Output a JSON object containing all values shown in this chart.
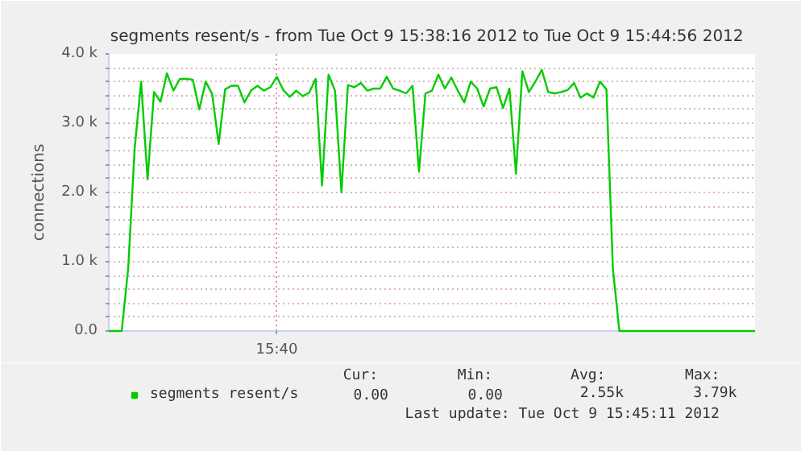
{
  "chart_data": {
    "type": "line",
    "title": "segments resent/s - from Tue Oct  9 15:38:16 2012 to Tue Oct  9 15:44:56 2012",
    "ylabel": "connections",
    "categories": [
      null,
      null,
      null,
      null,
      null,
      null,
      null,
      null,
      null,
      null,
      null,
      null,
      null,
      null,
      null,
      null,
      null,
      null,
      null,
      null,
      null,
      null,
      null,
      null,
      null,
      null,
      "15:40",
      null,
      null,
      null,
      null,
      null,
      null,
      null,
      null,
      null,
      null,
      null,
      null,
      null,
      null,
      null,
      null,
      null,
      null,
      null,
      null,
      null,
      null,
      null,
      null,
      null,
      null,
      null,
      null,
      null,
      null,
      null,
      null,
      null,
      null,
      null,
      null,
      null,
      null,
      null,
      null,
      null,
      null,
      null,
      null,
      null,
      null,
      null,
      null,
      null,
      null,
      null,
      null,
      null,
      null,
      null,
      null,
      null,
      null,
      null,
      null,
      null,
      null,
      null,
      null,
      null,
      null,
      null,
      null,
      null,
      null,
      null,
      null,
      null,
      null
    ],
    "series": [
      {
        "name": "segments resent/s",
        "color": "#00cc00",
        "values": [
          0,
          0,
          0,
          900,
          2630,
          3600,
          2190,
          3450,
          3310,
          3720,
          3470,
          3640,
          3640,
          3630,
          3200,
          3600,
          3420,
          2700,
          3490,
          3540,
          3540,
          3300,
          3470,
          3540,
          3470,
          3520,
          3670,
          3480,
          3380,
          3470,
          3390,
          3440,
          3640,
          2100,
          3700,
          3470,
          2000,
          3550,
          3520,
          3580,
          3470,
          3500,
          3500,
          3670,
          3500,
          3470,
          3430,
          3540,
          2300,
          3430,
          3470,
          3700,
          3500,
          3660,
          3470,
          3300,
          3600,
          3500,
          3240,
          3500,
          3520,
          3220,
          3500,
          2270,
          3750,
          3450,
          3600,
          3770,
          3450,
          3430,
          3450,
          3480,
          3580,
          3370,
          3430,
          3370,
          3600,
          3490,
          900,
          0,
          0,
          0,
          0,
          0,
          0,
          0,
          0,
          0,
          0,
          0,
          0,
          0,
          0,
          0,
          0,
          0,
          0,
          0,
          0,
          0,
          0
        ]
      }
    ],
    "ylim": [
      0,
      4000
    ],
    "yticks": [
      {
        "value": 0,
        "label": "0.0"
      },
      {
        "value": 200,
        "label": null
      },
      {
        "value": 400,
        "label": null
      },
      {
        "value": 600,
        "label": null
      },
      {
        "value": 800,
        "label": null
      },
      {
        "value": 1000,
        "label": "1.0 k"
      },
      {
        "value": 1200,
        "label": null
      },
      {
        "value": 1400,
        "label": null
      },
      {
        "value": 1600,
        "label": null
      },
      {
        "value": 1800,
        "label": null
      },
      {
        "value": 2000,
        "label": "2.0 k"
      },
      {
        "value": 2200,
        "label": null
      },
      {
        "value": 2400,
        "label": null
      },
      {
        "value": 2600,
        "label": null
      },
      {
        "value": 2800,
        "label": null
      },
      {
        "value": 3000,
        "label": "3.0 k"
      },
      {
        "value": 3200,
        "label": null
      },
      {
        "value": 3400,
        "label": null
      },
      {
        "value": 3600,
        "label": null
      },
      {
        "value": 3800,
        "label": null
      },
      {
        "value": 4000,
        "label": "4.0 k"
      }
    ],
    "grid": true,
    "legend": "bottom",
    "marker": "none",
    "line_style": "solid",
    "annotations": [
      "Cur:",
      "Min:",
      "Avg:",
      "Max:",
      "0.00",
      "0.00",
      "2.55k",
      "3.79k",
      "Last update:  Tue Oct  9 15:45:11 2012"
    ]
  }
}
